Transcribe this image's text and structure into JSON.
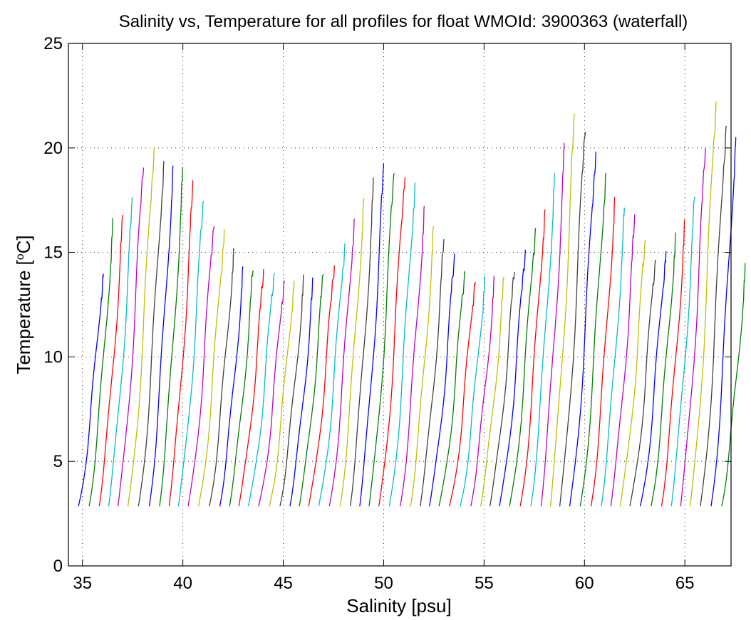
{
  "chart_data": {
    "type": "line",
    "title": "Salinity vs, Temperature for all profiles for float WMOId: 3900363 (waterfall)",
    "xlabel": "Salinity [psu]",
    "ylabel_main": "Temperature [",
    "ylabel_sup": "o",
    "ylabel_tail": "C]",
    "xlim": [
      34.3,
      67.3
    ],
    "ylim": [
      0,
      25
    ],
    "xticks": [
      35,
      40,
      45,
      50,
      55,
      60,
      65
    ],
    "xtick_labels": [
      "35",
      "40",
      "45",
      "50",
      "55",
      "60",
      "65"
    ],
    "yticks": [
      0,
      5,
      10,
      15,
      20,
      25
    ],
    "ytick_labels": [
      "0",
      "5",
      "10",
      "15",
      "20",
      "25"
    ],
    "grid": true,
    "grid_style": "dotted",
    "waterfall": {
      "profile_count": 65,
      "first_profile_salinity_at_base": 34.8,
      "salinity_offset_per_profile": 0.5,
      "base_temperature": 2.85,
      "surface_temperatures": [
        14.2,
        16.5,
        16.6,
        17.8,
        19.2,
        19.8,
        19.3,
        19.4,
        19.1,
        18.2,
        17.5,
        16.5,
        16.0,
        15.0,
        14.4,
        14.3,
        14.0,
        13.9,
        13.8,
        13.7,
        13.7,
        13.8,
        14.2,
        14.3,
        15.2,
        16.7,
        17.8,
        18.4,
        19.1,
        19.0,
        18.7,
        18.1,
        17.2,
        16.5,
        15.6,
        14.7,
        14.1,
        13.8,
        13.7,
        13.7,
        13.9,
        14.2,
        14.9,
        16.1,
        17.3,
        18.8,
        20.0,
        21.7,
        21.0,
        19.7,
        18.6,
        17.8,
        17.3,
        16.6,
        15.5,
        14.8,
        15.1,
        15.7,
        16.6,
        17.9,
        19.9,
        22.0,
        21.2,
        20.7,
        14.3
      ],
      "colors": [
        "#0000ff",
        "#008000",
        "#ff0000",
        "#00bfbf",
        "#bf00bf",
        "#bfbf00",
        "#404040"
      ]
    }
  }
}
